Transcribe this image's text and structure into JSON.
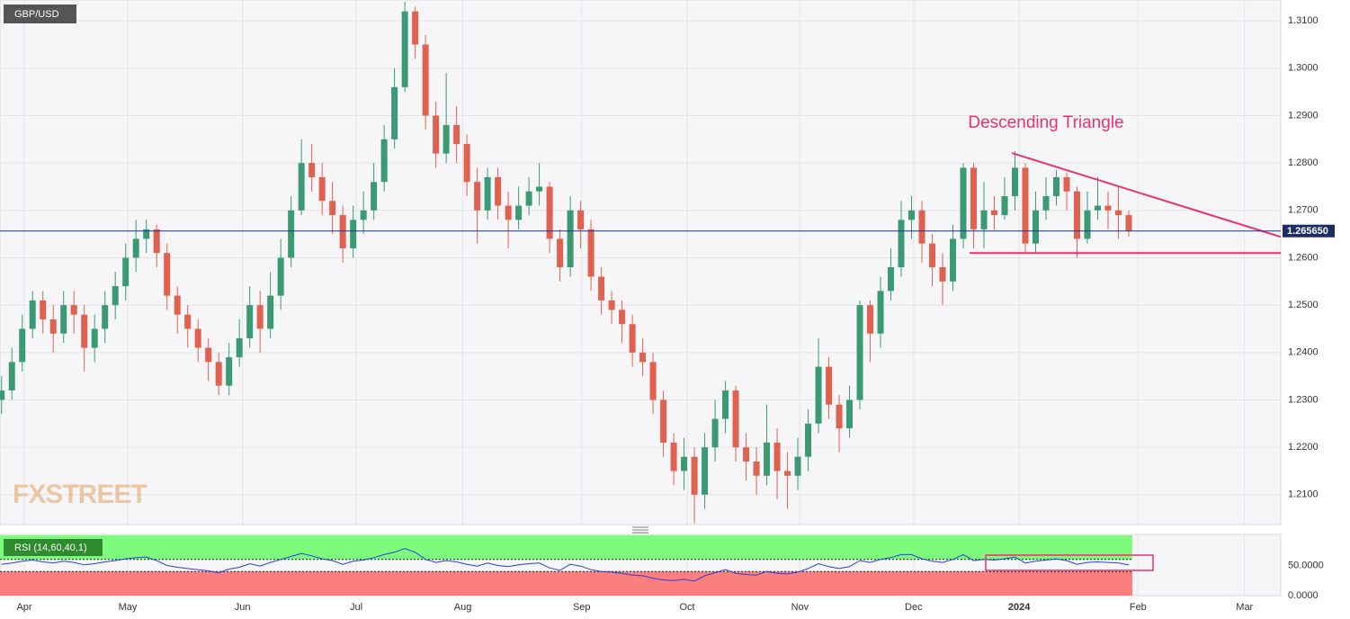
{
  "chart_data": [
    {
      "type": "candlestick",
      "title": "GBP/USD",
      "watermark": "FXSTREET",
      "annotation": "Descending Triangle",
      "up_color": "#3a9a74",
      "down_color": "#e0614f",
      "grid": true,
      "open": [
        1.23,
        1.232,
        1.238,
        1.245,
        1.251,
        1.247,
        1.244,
        1.25,
        1.248,
        1.241,
        1.245,
        1.25,
        1.254,
        1.26,
        1.264,
        1.266,
        1.261,
        1.252,
        1.248,
        1.245,
        1.241,
        1.238,
        1.233,
        1.239,
        1.243,
        1.25,
        1.245,
        1.252,
        1.26,
        1.27,
        1.28,
        1.277,
        1.272,
        1.269,
        1.262,
        1.268,
        1.27,
        1.276,
        1.285,
        1.296,
        1.312,
        1.305,
        1.29,
        1.282,
        1.288,
        1.284,
        1.276,
        1.27,
        1.277,
        1.271,
        1.268,
        1.271,
        1.274,
        1.275,
        1.264,
        1.258,
        1.27,
        1.266,
        1.256,
        1.251,
        1.249,
        1.246,
        1.24,
        1.238,
        1.23,
        1.221,
        1.215,
        1.218,
        1.21,
        1.22,
        1.226,
        1.232,
        1.22,
        1.217,
        1.214,
        1.221,
        1.215,
        1.214,
        1.218,
        1.225,
        1.237,
        1.229,
        1.224,
        1.23,
        1.25,
        1.244,
        1.253,
        1.258,
        1.268,
        1.27,
        1.263,
        1.258,
        1.255,
        1.264,
        1.279,
        1.266,
        1.27,
        1.269,
        1.273,
        1.279,
        1.263,
        1.27,
        1.273,
        1.277,
        1.274,
        1.264,
        1.27,
        1.271,
        1.27,
        1.269
      ],
      "high": [
        1.235,
        1.241,
        1.248,
        1.253,
        1.253,
        1.25,
        1.253,
        1.253,
        1.25,
        1.248,
        1.253,
        1.257,
        1.263,
        1.268,
        1.268,
        1.267,
        1.263,
        1.254,
        1.25,
        1.247,
        1.243,
        1.24,
        1.242,
        1.247,
        1.254,
        1.253,
        1.257,
        1.264,
        1.273,
        1.285,
        1.284,
        1.28,
        1.276,
        1.271,
        1.271,
        1.274,
        1.28,
        1.288,
        1.3,
        1.314,
        1.313,
        1.307,
        1.293,
        1.299,
        1.292,
        1.286,
        1.279,
        1.279,
        1.279,
        1.274,
        1.275,
        1.277,
        1.28,
        1.276,
        1.266,
        1.273,
        1.272,
        1.268,
        1.258,
        1.253,
        1.251,
        1.248,
        1.243,
        1.24,
        1.232,
        1.223,
        1.222,
        1.22,
        1.223,
        1.23,
        1.234,
        1.233,
        1.223,
        1.22,
        1.229,
        1.224,
        1.219,
        1.222,
        1.228,
        1.243,
        1.239,
        1.231,
        1.233,
        1.251,
        1.251,
        1.256,
        1.262,
        1.272,
        1.273,
        1.272,
        1.265,
        1.261,
        1.267,
        1.28,
        1.28,
        1.276,
        1.273,
        1.277,
        1.2825,
        1.28,
        1.274,
        1.277,
        1.2785,
        1.278,
        1.275,
        1.274,
        1.277,
        1.274,
        1.275,
        1.27
      ],
      "low": [
        1.227,
        1.23,
        1.236,
        1.243,
        1.244,
        1.24,
        1.242,
        1.244,
        1.236,
        1.238,
        1.242,
        1.247,
        1.251,
        1.257,
        1.261,
        1.258,
        1.249,
        1.244,
        1.241,
        1.238,
        1.234,
        1.231,
        1.231,
        1.237,
        1.241,
        1.24,
        1.243,
        1.249,
        1.258,
        1.269,
        1.274,
        1.269,
        1.265,
        1.259,
        1.26,
        1.265,
        1.268,
        1.274,
        1.283,
        1.295,
        1.302,
        1.287,
        1.279,
        1.28,
        1.28,
        1.273,
        1.263,
        1.268,
        1.268,
        1.262,
        1.266,
        1.269,
        1.271,
        1.261,
        1.255,
        1.256,
        1.262,
        1.253,
        1.248,
        1.246,
        1.242,
        1.237,
        1.235,
        1.227,
        1.218,
        1.212,
        1.211,
        1.204,
        1.207,
        1.217,
        1.223,
        1.217,
        1.213,
        1.21,
        1.212,
        1.209,
        1.207,
        1.211,
        1.215,
        1.223,
        1.226,
        1.219,
        1.222,
        1.228,
        1.238,
        1.241,
        1.251,
        1.256,
        1.264,
        1.259,
        1.254,
        1.25,
        1.253,
        1.262,
        1.262,
        1.262,
        1.266,
        1.268,
        1.27,
        1.261,
        1.261,
        1.268,
        1.271,
        1.27,
        1.26,
        1.263,
        1.268,
        1.266,
        1.264,
        1.2645
      ],
      "close": [
        1.232,
        1.238,
        1.245,
        1.251,
        1.247,
        1.244,
        1.25,
        1.248,
        1.241,
        1.245,
        1.25,
        1.254,
        1.26,
        1.264,
        1.266,
        1.261,
        1.252,
        1.248,
        1.245,
        1.241,
        1.238,
        1.233,
        1.239,
        1.243,
        1.25,
        1.245,
        1.252,
        1.26,
        1.27,
        1.28,
        1.277,
        1.272,
        1.269,
        1.262,
        1.268,
        1.27,
        1.276,
        1.285,
        1.296,
        1.312,
        1.305,
        1.29,
        1.282,
        1.288,
        1.284,
        1.276,
        1.27,
        1.277,
        1.271,
        1.268,
        1.271,
        1.274,
        1.275,
        1.264,
        1.258,
        1.27,
        1.266,
        1.256,
        1.251,
        1.249,
        1.246,
        1.24,
        1.238,
        1.23,
        1.221,
        1.215,
        1.218,
        1.21,
        1.22,
        1.226,
        1.232,
        1.22,
        1.217,
        1.214,
        1.221,
        1.215,
        1.214,
        1.218,
        1.225,
        1.237,
        1.229,
        1.224,
        1.23,
        1.25,
        1.244,
        1.253,
        1.258,
        1.268,
        1.27,
        1.263,
        1.258,
        1.255,
        1.264,
        1.279,
        1.266,
        1.27,
        1.269,
        1.273,
        1.279,
        1.263,
        1.27,
        1.273,
        1.277,
        1.274,
        1.264,
        1.27,
        1.271,
        1.27,
        1.269,
        1.2657
      ],
      "xlim": [
        -0.15,
        123.7
      ],
      "xticks": [
        {
          "value": 2.2,
          "label": "Apr"
        },
        {
          "value": 12.2,
          "label": "May"
        },
        {
          "value": 23.3,
          "label": "Jun"
        },
        {
          "value": 34.3,
          "label": "Jul"
        },
        {
          "value": 44.6,
          "label": "Aug"
        },
        {
          "value": 56.1,
          "label": "Sep"
        },
        {
          "value": 66.3,
          "label": "Oct"
        },
        {
          "value": 77.2,
          "label": "Nov"
        },
        {
          "value": 88.2,
          "label": "Dec"
        },
        {
          "value": 98.4,
          "label": "2024"
        },
        {
          "value": 109.9,
          "label": "Feb"
        },
        {
          "value": 120.2,
          "label": "Mar"
        }
      ],
      "ylim": [
        1.2037,
        1.3144
      ],
      "yticks": [
        {
          "value": 1.21,
          "label": "1.2100"
        },
        {
          "value": 1.22,
          "label": "1.2200"
        },
        {
          "value": 1.23,
          "label": "1.2300"
        },
        {
          "value": 1.24,
          "label": "1.2400"
        },
        {
          "value": 1.25,
          "label": "1.2500"
        },
        {
          "value": 1.26,
          "label": "1.2600"
        },
        {
          "value": 1.27,
          "label": "1.2700"
        },
        {
          "value": 1.28,
          "label": "1.2800"
        },
        {
          "value": 1.29,
          "label": "1.2900"
        },
        {
          "value": 1.3,
          "label": "1.3000"
        },
        {
          "value": 1.31,
          "label": "1.3100"
        }
      ],
      "last_price": {
        "value": 1.26565,
        "label": "1.265650"
      },
      "trendlines": [
        {
          "x": [
            97.7,
            123.7
          ],
          "y": [
            1.2821,
            1.2644
          ],
          "color": "#e8336b"
        },
        {
          "x": [
            93.6,
            123.7
          ],
          "y": [
            1.261,
            1.261
          ],
          "color": "#e8336b"
        }
      ]
    },
    {
      "type": "line",
      "title": "RSI (14,60,40,1)",
      "levels": [
        60,
        40
      ],
      "band_colors": [
        "#7dfb7d",
        "#fb7f7f"
      ],
      "xlim": [
        -0.15,
        123.7
      ],
      "ylim": [
        0,
        100
      ],
      "yticks": [
        {
          "value": 0,
          "label": "0.0000"
        },
        {
          "value": 50,
          "label": "50.0000"
        }
      ],
      "series": [
        {
          "color": "#2a3fd6",
          "values": [
            52,
            54,
            57,
            59,
            56,
            54,
            57,
            55,
            51,
            53,
            56,
            58,
            61,
            63,
            64,
            58,
            50,
            47,
            45,
            43,
            41,
            38,
            44,
            47,
            53,
            49,
            55,
            60,
            65,
            70,
            66,
            61,
            58,
            52,
            57,
            59,
            63,
            68,
            72,
            78,
            72,
            60,
            55,
            58,
            56,
            52,
            49,
            54,
            50,
            48,
            51,
            53,
            54,
            46,
            42,
            52,
            49,
            43,
            40,
            39,
            37,
            34,
            33,
            29,
            26,
            25,
            27,
            24,
            33,
            38,
            43,
            37,
            35,
            34,
            40,
            37,
            36,
            39,
            45,
            53,
            48,
            45,
            48,
            58,
            55,
            60,
            63,
            68,
            68,
            61,
            57,
            55,
            60,
            68,
            58,
            60,
            59,
            61,
            64,
            54,
            57,
            59,
            61,
            58,
            52,
            55,
            56,
            55,
            54,
            51
          ]
        }
      ]
    }
  ]
}
